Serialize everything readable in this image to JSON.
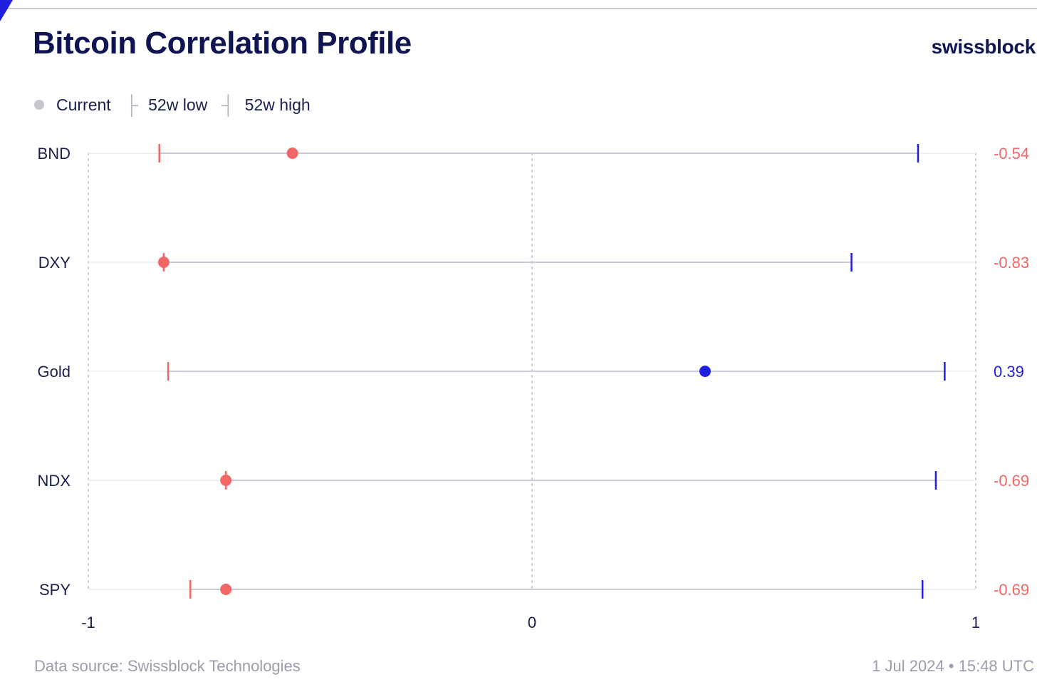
{
  "header": {
    "title": "Bitcoin Correlation Profile",
    "brand": "swissblock"
  },
  "legend": {
    "current_label": "Current",
    "low_glyph": "├",
    "low_label": "52w low",
    "high_glyph": "┤",
    "high_label": "52w high"
  },
  "footer": {
    "source": "Data source: Swissblock Technologies",
    "timestamp": "1 Jul 2024 • 15:48 UTC"
  },
  "colors": {
    "negative": "#f26666",
    "positive": "#1f1fe0",
    "range_line": "#c9cbd8",
    "grid": "#c9c9d4",
    "text": "#1a1f4d",
    "muted": "#9a9cad"
  },
  "chart_data": {
    "type": "dot-range",
    "title": "Bitcoin Correlation Profile",
    "xlim": [
      -1,
      1
    ],
    "x_ticks": [
      {
        "value": -1,
        "label": "-1"
      },
      {
        "value": 0,
        "label": "0"
      },
      {
        "value": 1,
        "label": "1"
      }
    ],
    "grid": "vertical dotted at -1, 0, 1",
    "categories": [
      "BND",
      "DXY",
      "Gold",
      "NDX",
      "SPY"
    ],
    "series": [
      {
        "name": "Current",
        "values": [
          -0.54,
          -0.83,
          0.39,
          -0.69,
          -0.69
        ]
      },
      {
        "name": "52w low",
        "values": [
          -0.84,
          -0.83,
          -0.82,
          -0.69,
          -0.77
        ]
      },
      {
        "name": "52w high",
        "values": [
          0.87,
          0.72,
          0.93,
          0.91,
          0.88
        ]
      }
    ],
    "value_labels": [
      "-0.54",
      "-0.83",
      "0.39",
      "-0.69",
      "-0.69"
    ]
  }
}
